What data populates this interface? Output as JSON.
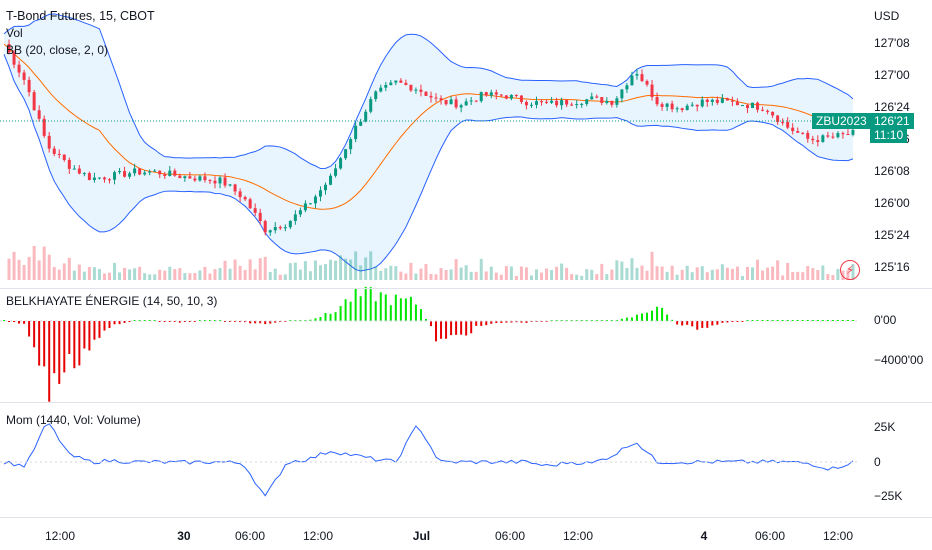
{
  "header": {
    "title": "T-Bond Futures, 15, CBOT",
    "vol_label": "Vol",
    "bb_label": "BB (20, close, 2, 0)",
    "currency": "USD"
  },
  "price_axis": {
    "ticks": [
      "127'08",
      "127'00",
      "126'24",
      "126'16",
      "126'08",
      "126'00",
      "125'24",
      "125'16"
    ]
  },
  "last_price": {
    "symbol": "ZBU2023",
    "price": "126'21",
    "countdown": "11:10",
    "color": "#089981"
  },
  "time_axis": {
    "ticks": [
      "12:00",
      "30",
      "06:00",
      "12:00",
      "Jul",
      "06:00",
      "12:00",
      "4",
      "06:00",
      "12:00"
    ]
  },
  "belkhayate": {
    "label": "BELKHAYATE ÉNERGIE (14, 50, 10, 3)",
    "ticks": [
      "0'00",
      "−4000'00"
    ]
  },
  "momentum": {
    "label": "Mom (1440, Vol: Volume)",
    "ticks": [
      "25K",
      "0",
      "−25K"
    ]
  },
  "colors": {
    "up": "#089981",
    "down": "#f23645",
    "band": "#2962ff",
    "basis": "#ff6d00",
    "osc_pos": "#00e600",
    "osc_neg": "#e60000",
    "mom_line": "#2962ff"
  },
  "chart_data": [
    {
      "type": "line",
      "title": "T-Bond Futures, 15, CBOT",
      "series": [
        {
          "name": "BB (20, close, 2, 0)",
          "values": [
            127.25,
            126.95,
            126.45,
            126.3,
            126.2,
            126.22,
            126.25,
            126.25,
            126.22,
            126.2,
            126.18,
            126.05,
            125.8,
            125.85,
            126.0,
            126.2,
            126.55,
            126.85,
            126.95,
            126.9,
            126.8,
            126.78,
            126.85,
            126.85,
            126.8,
            126.78,
            126.8,
            126.82,
            126.8,
            127.05,
            126.8,
            126.75,
            126.8,
            126.8,
            126.78,
            126.75,
            126.6,
            126.5,
            126.52,
            126.55
          ]
        }
      ]
    },
    {
      "type": "bar",
      "title": "BELKHAYATE ÉNERGIE (14, 50, 10, 3)",
      "values": [
        0,
        -200,
        -4500,
        -3000,
        -1500,
        -300,
        0,
        0,
        -100,
        0,
        0,
        -100,
        -200,
        0,
        100,
        500,
        1600,
        1800,
        1400,
        1200,
        -1500,
        -900,
        -300,
        -100,
        -100,
        0,
        0,
        50,
        0,
        300,
        1000,
        -300,
        -500,
        -100,
        0,
        0,
        0,
        0,
        0,
        50
      ]
    },
    {
      "type": "line",
      "title": "Mom (1440, Vol: Volume)",
      "values": [
        0,
        -3000,
        29000,
        5000,
        0,
        1000,
        0,
        0,
        -500,
        0,
        0,
        -1000,
        -25000,
        0,
        2000,
        8000,
        5000,
        2000,
        0,
        27000,
        0,
        0,
        0,
        0,
        0,
        -3000,
        0,
        -1000,
        5000,
        15000,
        0,
        0,
        0,
        0,
        0,
        0,
        0,
        -1000,
        -5000,
        0
      ]
    }
  ]
}
